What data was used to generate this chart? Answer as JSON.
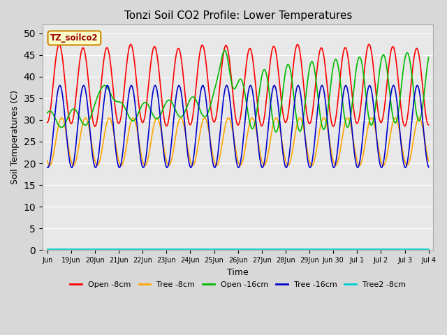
{
  "title": "Tonzi Soil CO2 Profile: Lower Temperatures",
  "xlabel": "Time",
  "ylabel": "Soil Temperatures (C)",
  "ylim": [
    0,
    52
  ],
  "yticks": [
    0,
    5,
    10,
    15,
    20,
    25,
    30,
    35,
    40,
    45,
    50
  ],
  "bg_color": "#d8d8d8",
  "plot_bg_color": "#e8e8e8",
  "legend_label": "TZ_soilco2",
  "series_labels": [
    "Open -8cm",
    "Tree -8cm",
    "Open -16cm",
    "Tree -16cm",
    "Tree2 -8cm"
  ],
  "series_colors": [
    "#ff0000",
    "#ffa500",
    "#00bb00",
    "#0000cc",
    "#00cccc"
  ],
  "xtick_labels": [
    "Jun",
    "19Jun",
    "20Jun",
    "21Jun",
    "22Jun",
    "23Jun",
    "24Jun",
    "25Jun",
    "26Jun",
    "27Jun",
    "28Jun",
    "29Jun",
    "Jun 30",
    "Jul 1",
    "Jul 2",
    "Jul 3",
    "Jul 4"
  ],
  "num_points": 480
}
